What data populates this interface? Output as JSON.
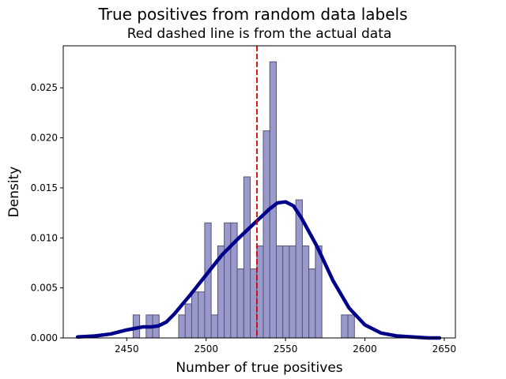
{
  "chart_data": {
    "type": "bar",
    "title": "True positives from random data labels",
    "subtitle": "Red dashed line is from the actual data",
    "xlabel": "Number of true positives",
    "ylabel": "Density",
    "xlim": [
      2410,
      2657
    ],
    "ylim": [
      0,
      0.0292
    ],
    "xticks": [
      2450,
      2500,
      2550,
      2600,
      2650
    ],
    "yticks": [
      0.0,
      0.005,
      0.01,
      0.015,
      0.02,
      0.025
    ],
    "ytick_labels": [
      "0.000",
      "0.005",
      "0.010",
      "0.015",
      "0.020",
      "0.025"
    ],
    "hist": {
      "bin_start": 2454,
      "bin_width": 4.1,
      "densities": [
        0.0023,
        0,
        0.0023,
        0.0023,
        0,
        0,
        0,
        0.0023,
        0.0034,
        0.0046,
        0.0046,
        0.0115,
        0.0023,
        0.0092,
        0.0115,
        0.0115,
        0.0069,
        0.0161,
        0.0069,
        0.0092,
        0.0207,
        0.0276,
        0.0092,
        0.0092,
        0.0092,
        0.0138,
        0.0092,
        0.0069,
        0.0092,
        0,
        0,
        0,
        0.0023,
        0.0023
      ],
      "color": "#9999cc",
      "edge_color": "#555577"
    },
    "kde": {
      "x": [
        2419,
        2430,
        2440,
        2450,
        2460,
        2465,
        2470,
        2475,
        2480,
        2490,
        2500,
        2510,
        2520,
        2530,
        2540,
        2545,
        2550,
        2555,
        2560,
        2570,
        2580,
        2590,
        2600,
        2610,
        2620,
        2630,
        2640,
        2647
      ],
      "y": [
        0.0001,
        0.0002,
        0.0004,
        0.0008,
        0.0011,
        0.0011,
        0.0012,
        0.0016,
        0.0024,
        0.0043,
        0.0063,
        0.0083,
        0.0099,
        0.0114,
        0.0129,
        0.0135,
        0.0136,
        0.0132,
        0.012,
        0.0091,
        0.0057,
        0.003,
        0.0013,
        0.0005,
        0.0002,
        0.0001,
        0.0,
        0.0
      ],
      "color": "#00008b"
    },
    "reference_line": {
      "x": 2532,
      "color": "#dd0000",
      "style": "dashed"
    },
    "grid": false,
    "legend": "none"
  }
}
